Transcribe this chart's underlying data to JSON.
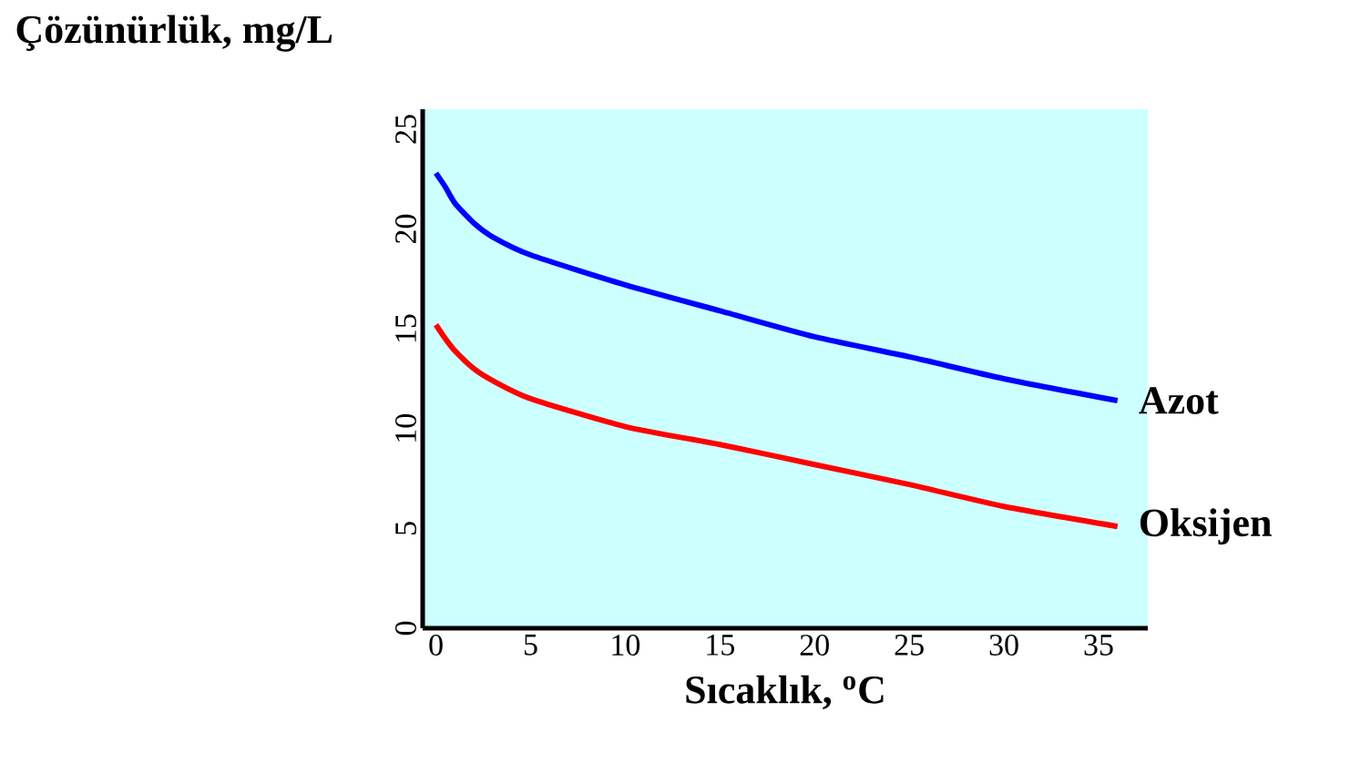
{
  "chart_data": {
    "type": "line",
    "ylabel": "Çözünürlük, mg/L",
    "xlabel": "Sıcaklık, $^{o}$C",
    "x": [
      0,
      0.5,
      1,
      2,
      3,
      5,
      10,
      15,
      20,
      25,
      30,
      36
    ],
    "series": [
      {
        "name": "Azot",
        "color": "#0000ff",
        "values": [
          22.8,
          22.1,
          21.3,
          20.3,
          19.6,
          18.7,
          17.2,
          15.9,
          14.6,
          13.6,
          12.5,
          11.4
        ]
      },
      {
        "name": "Oksijen",
        "color": "#ff0000",
        "values": [
          15.2,
          14.5,
          13.9,
          13.0,
          12.4,
          11.5,
          10.1,
          9.2,
          8.2,
          7.2,
          6.1,
          5.1
        ]
      }
    ],
    "xlim": [
      -0.7,
      37.6
    ],
    "ylim": [
      0,
      26
    ],
    "xticks": [
      0,
      5,
      10,
      15,
      20,
      25,
      30,
      35
    ],
    "yticks": [
      0,
      5,
      10,
      15,
      20,
      25
    ],
    "marker": "none"
  }
}
